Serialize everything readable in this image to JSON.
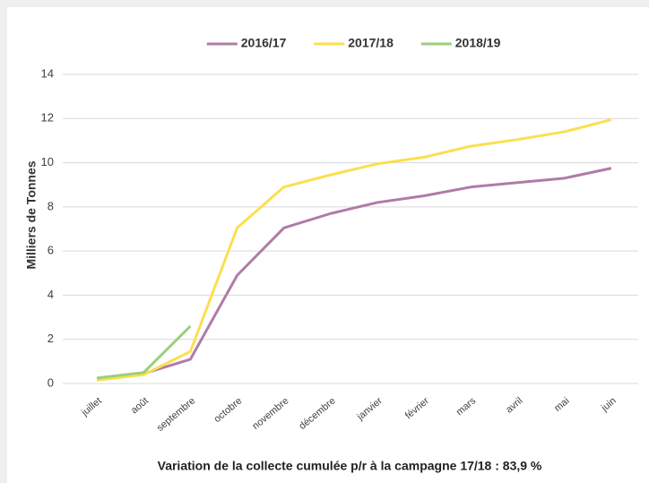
{
  "chart_data": {
    "type": "line",
    "y_label": "Milliers de Tonnes",
    "footnote": "Variation de la collecte cumulée p/r à la campagne 17/18 : 83,9 %",
    "categories": [
      "juillet",
      "août",
      "septembre",
      "octobre",
      "novembre",
      "décembre",
      "janvier",
      "février",
      "mars",
      "avril",
      "mai",
      "juin"
    ],
    "series": [
      {
        "name": "2016/17",
        "color": "#b07ba8",
        "values": [
          0.2,
          0.45,
          1.1,
          4.9,
          7.05,
          7.7,
          8.2,
          8.5,
          8.9,
          9.1,
          9.3,
          9.75
        ]
      },
      {
        "name": "2017/18",
        "color": "#fbdf4f",
        "values": [
          0.15,
          0.4,
          1.45,
          7.05,
          8.9,
          9.45,
          9.95,
          10.25,
          10.75,
          11.05,
          11.4,
          11.95
        ]
      },
      {
        "name": "2018/19",
        "color": "#9bcf7c",
        "values": [
          0.25,
          0.5,
          2.6,
          null,
          null,
          null,
          null,
          null,
          null,
          null,
          null,
          null
        ]
      }
    ],
    "ylim": [
      0,
      14
    ],
    "yticks": [
      0,
      2,
      4,
      6,
      8,
      10,
      12,
      14
    ],
    "grid": true,
    "legend": "top"
  }
}
